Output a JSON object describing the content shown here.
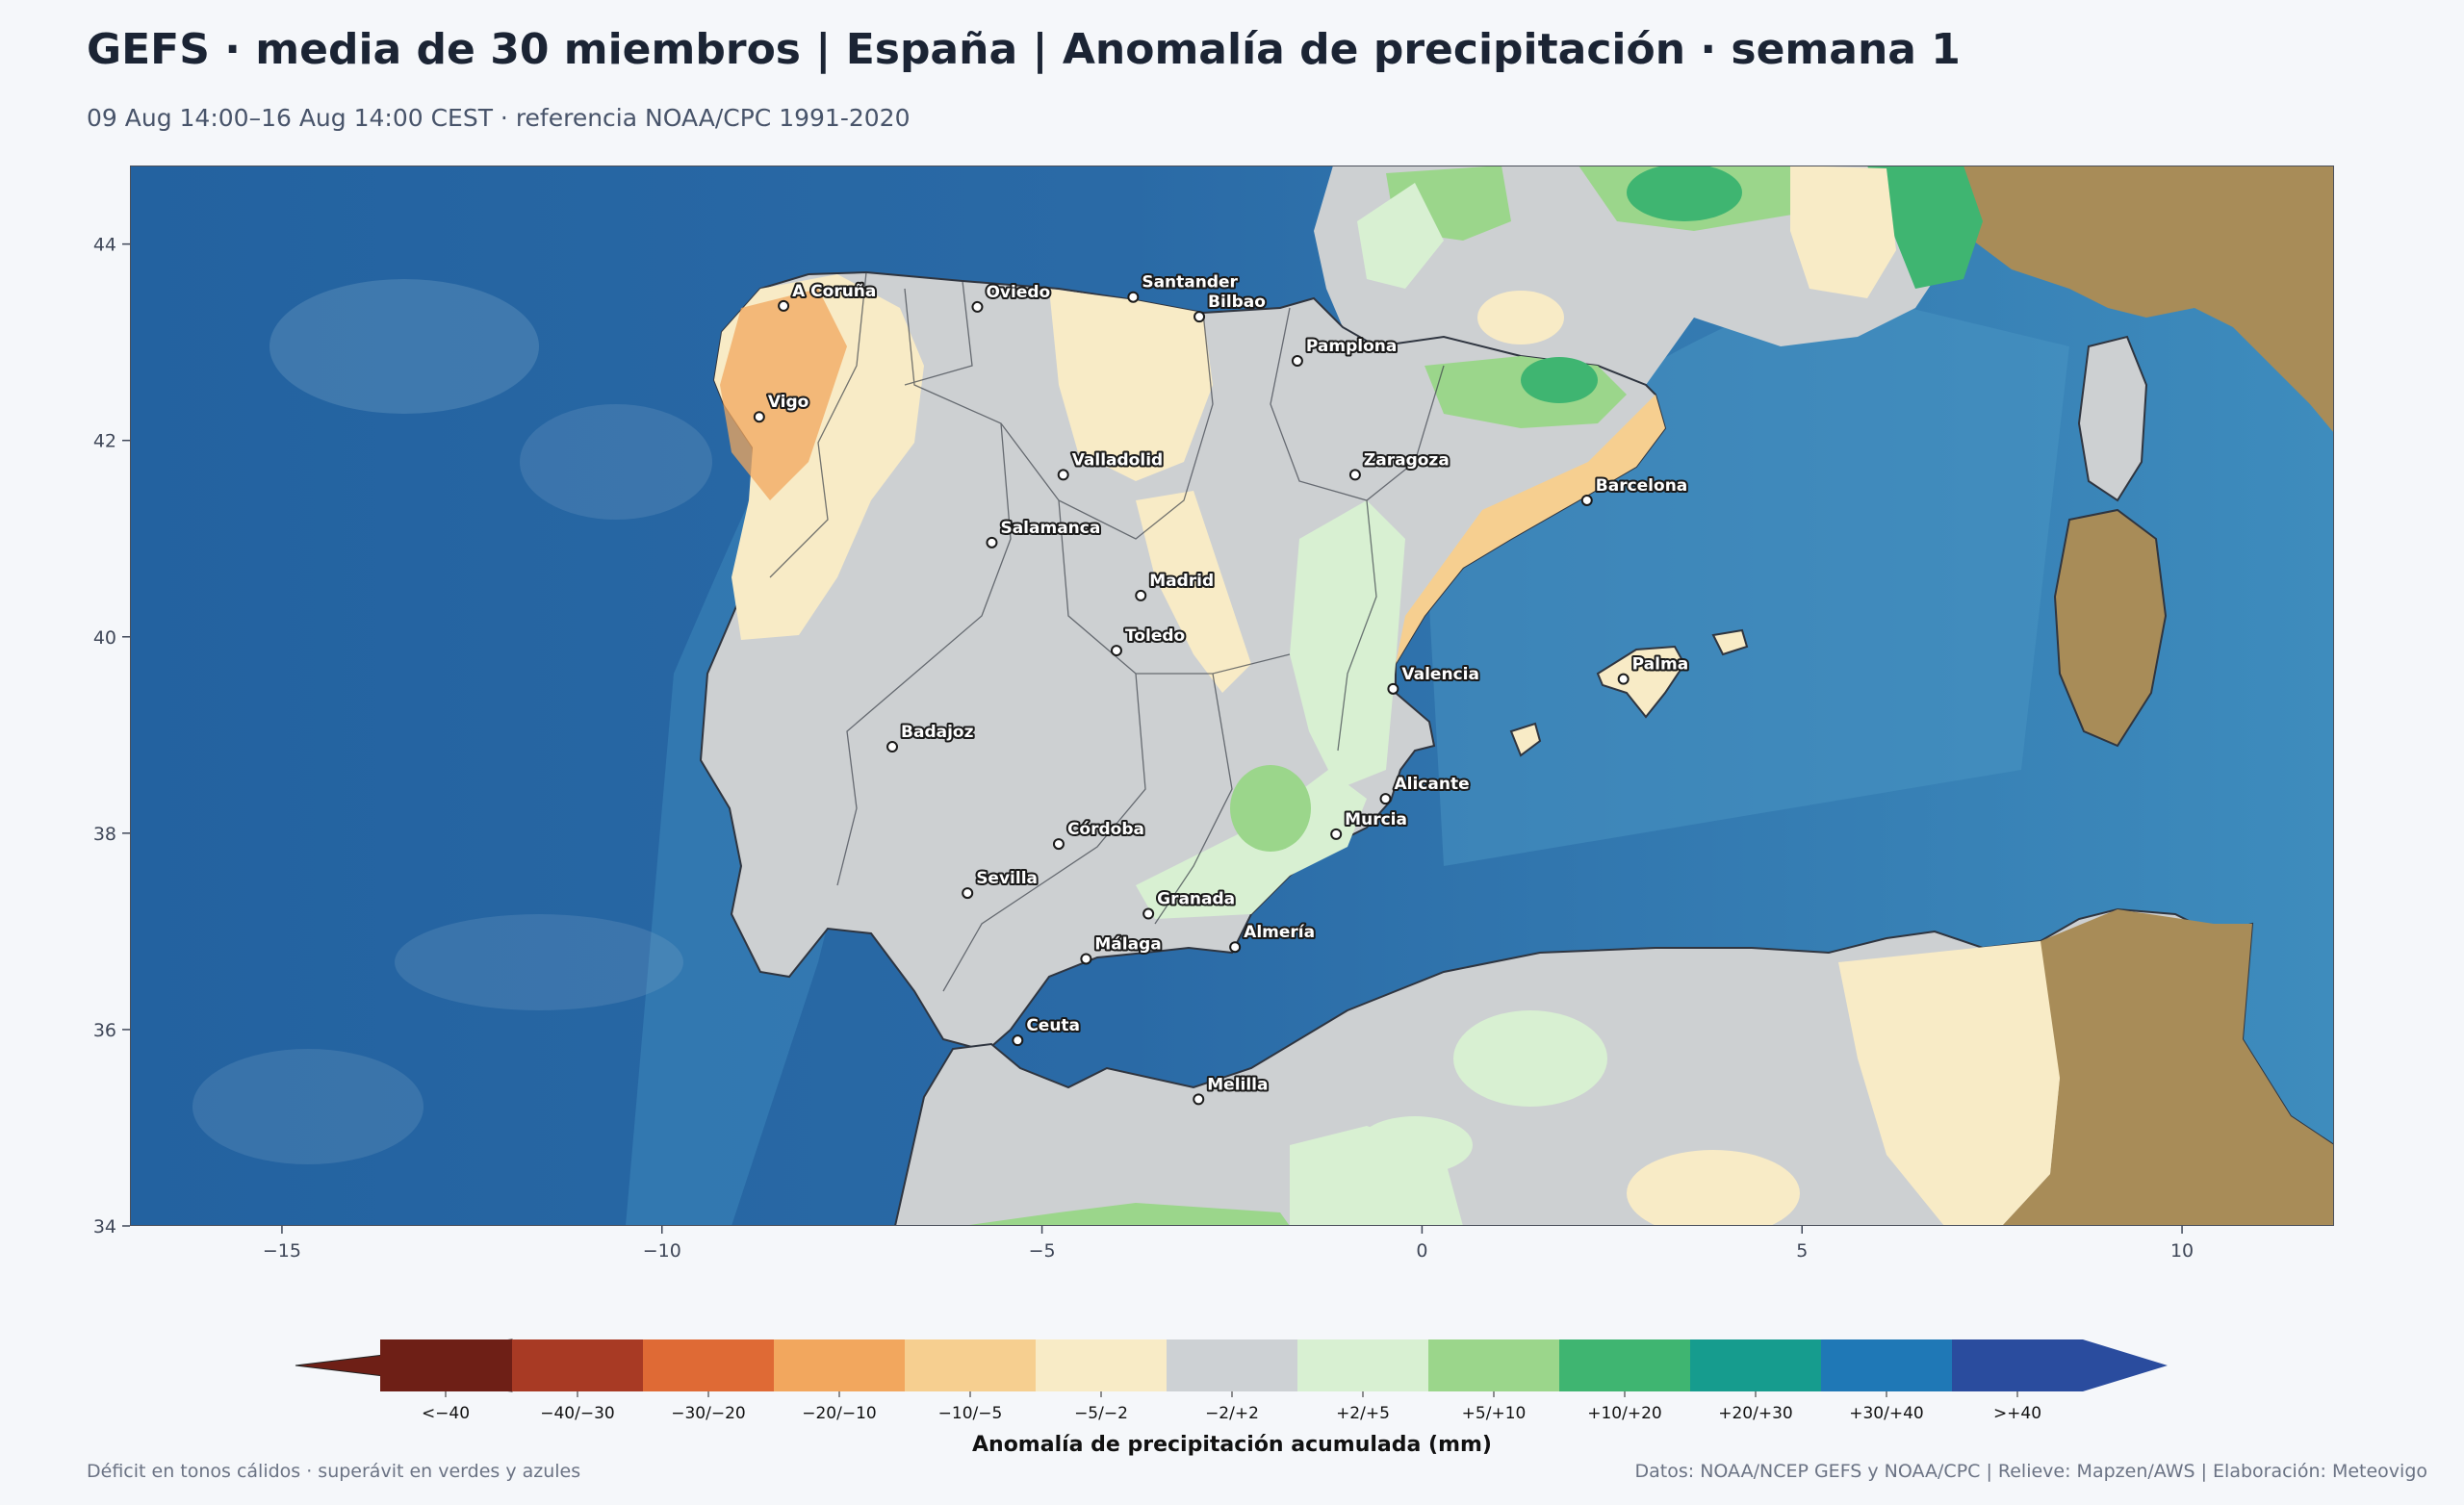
{
  "header": {
    "title": "GEFS · media de 30 miembros | España | Anomalía de precipitación · semana 1",
    "subtitle": "09 Aug 14:00–16 Aug 14:00 CEST · referencia NOAA/CPC 1991-2020"
  },
  "map": {
    "lon_range": [
      -17,
      12
    ],
    "lat_range": [
      34,
      44.8
    ],
    "lon_ticks": [
      {
        "value": -15,
        "label": "−15"
      },
      {
        "value": -10,
        "label": "−10"
      },
      {
        "value": -5,
        "label": "−5"
      },
      {
        "value": 0,
        "label": "0"
      },
      {
        "value": 5,
        "label": "5"
      },
      {
        "value": 10,
        "label": "10"
      }
    ],
    "lat_ticks": [
      {
        "value": 34,
        "label": "34"
      },
      {
        "value": 36,
        "label": "36"
      },
      {
        "value": 38,
        "label": "38"
      },
      {
        "value": 40,
        "label": "40"
      },
      {
        "value": 42,
        "label": "42"
      },
      {
        "value": 44,
        "label": "44"
      }
    ],
    "colors": {
      "sea_deep": "#2464a0",
      "sea_shallow": "#4a96c4",
      "land_base": "#cdd0d2",
      "relief": "#a88c58",
      "border": "#2f3540",
      "frame": "#4a4f5a"
    },
    "cities": [
      {
        "name": "A Coruña",
        "lon": -8.4,
        "lat": 43.37
      },
      {
        "name": "Oviedo",
        "lon": -5.85,
        "lat": 43.36
      },
      {
        "name": "Santander",
        "lon": -3.8,
        "lat": 43.46
      },
      {
        "name": "Bilbao",
        "lon": -2.93,
        "lat": 43.26
      },
      {
        "name": "Pamplona",
        "lon": -1.64,
        "lat": 42.81
      },
      {
        "name": "Vigo",
        "lon": -8.72,
        "lat": 42.24
      },
      {
        "name": "Valladolid",
        "lon": -4.72,
        "lat": 41.65
      },
      {
        "name": "Zaragoza",
        "lon": -0.88,
        "lat": 41.65
      },
      {
        "name": "Barcelona",
        "lon": 2.17,
        "lat": 41.39
      },
      {
        "name": "Salamanca",
        "lon": -5.66,
        "lat": 40.96
      },
      {
        "name": "Madrid",
        "lon": -3.7,
        "lat": 40.42
      },
      {
        "name": "Toledo",
        "lon": -4.02,
        "lat": 39.86
      },
      {
        "name": "Valencia",
        "lon": -0.38,
        "lat": 39.47
      },
      {
        "name": "Palma",
        "lon": 2.65,
        "lat": 39.57
      },
      {
        "name": "Badajoz",
        "lon": -6.97,
        "lat": 38.88
      },
      {
        "name": "Córdoba",
        "lon": -4.78,
        "lat": 37.89
      },
      {
        "name": "Murcia",
        "lon": -1.13,
        "lat": 37.99
      },
      {
        "name": "Alicante",
        "lon": -0.48,
        "lat": 38.35
      },
      {
        "name": "Granada",
        "lon": -3.6,
        "lat": 37.18
      },
      {
        "name": "Sevilla",
        "lon": -5.98,
        "lat": 37.39
      },
      {
        "name": "Almería",
        "lon": -2.46,
        "lat": 36.84
      },
      {
        "name": "Málaga",
        "lon": -4.42,
        "lat": 36.72
      },
      {
        "name": "Ceuta",
        "lon": -5.32,
        "lat": 35.89
      },
      {
        "name": "Melilla",
        "lon": -2.94,
        "lat": 35.29
      }
    ]
  },
  "colorbar": {
    "title": "Anomalía de precipitación acumulada (mm)",
    "bins": [
      {
        "label": "<−40",
        "color": "#6e1f16"
      },
      {
        "label": "−40/−30",
        "color": "#a83a24"
      },
      {
        "label": "−30/−20",
        "color": "#df6a35"
      },
      {
        "label": "−20/−10",
        "color": "#f2a75e"
      },
      {
        "label": "−10/−5",
        "color": "#f6cf90"
      },
      {
        "label": "−5/−2",
        "color": "#f8ebc6"
      },
      {
        "label": "−2/+2",
        "color": "#cdd1d4"
      },
      {
        "label": "+2/+5",
        "color": "#d8f0d2"
      },
      {
        "label": "+5/+10",
        "color": "#9bd68b"
      },
      {
        "label": "+10/+20",
        "color": "#3fb571"
      },
      {
        "label": "+20/+30",
        "color": "#169c8e"
      },
      {
        "label": "+30/+40",
        "color": "#1f78b6"
      },
      {
        "label": ">+40",
        "color": "#2a4c9e"
      }
    ]
  },
  "footer": {
    "left": "Déficit en tonos cálidos · superávit en verdes y azules",
    "right": "Datos: NOAA/NCEP GEFS y NOAA/CPC | Relieve: Mapzen/AWS | Elaboración: Meteovigo"
  }
}
